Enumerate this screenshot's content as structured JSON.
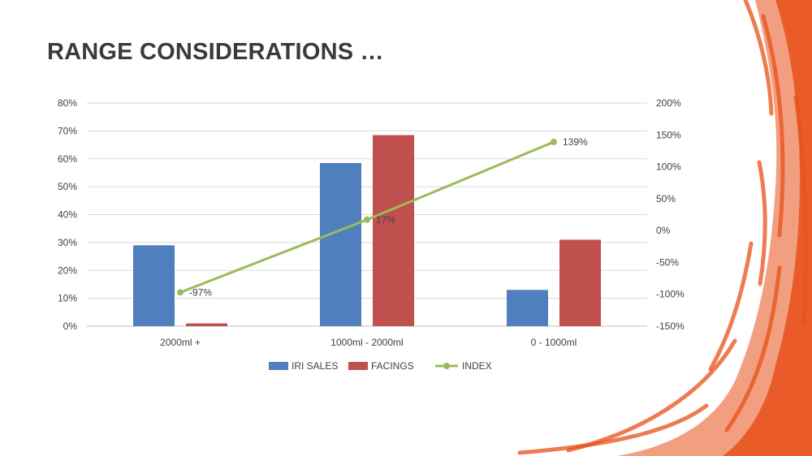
{
  "slide": {
    "title": "RANGE CONSIDERATIONS …"
  },
  "colors": {
    "iri_sales": "#4F7FBD",
    "facings": "#C0504D",
    "index": "#9BBB59",
    "brush": "#E8501A"
  },
  "chart_data": {
    "type": "bar",
    "categories": [
      "2000ml +",
      "1000ml - 2000ml",
      "0 - 1000ml"
    ],
    "series": [
      {
        "name": "IRI SALES",
        "kind": "bar",
        "axis": "left",
        "values": [
          29,
          58.5,
          13
        ]
      },
      {
        "name": "FACINGS",
        "kind": "bar",
        "axis": "left",
        "values": [
          1,
          68.5,
          31
        ]
      },
      {
        "name": "INDEX",
        "kind": "line",
        "axis": "right",
        "values": [
          -97,
          17,
          139
        ],
        "labels": [
          "-97%",
          "17%",
          "139%"
        ]
      }
    ],
    "ylim": [
      0,
      80
    ],
    "y_ticks": [
      "0%",
      "10%",
      "20%",
      "30%",
      "40%",
      "50%",
      "60%",
      "70%",
      "80%"
    ],
    "y2lim": [
      -150,
      200
    ],
    "y2_ticks": [
      "-150%",
      "-100%",
      "-50%",
      "0%",
      "50%",
      "100%",
      "150%",
      "200%"
    ],
    "grid": true,
    "legend": "bottom"
  }
}
